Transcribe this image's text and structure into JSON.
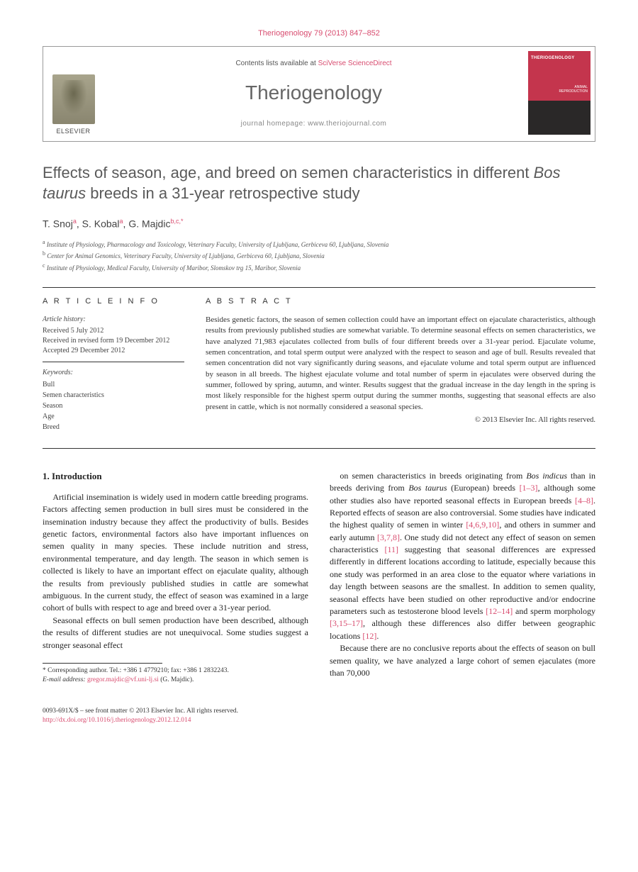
{
  "citation": "Theriogenology 79 (2013) 847–852",
  "header": {
    "contents_prefix": "Contents lists available at ",
    "contents_link": "SciVerse ScienceDirect",
    "journal_name": "Theriogenology",
    "homepage_label": "journal homepage: ",
    "homepage_url": "www.theriojournal.com",
    "publisher": "ELSEVIER",
    "cover_title": "THERIOGENOLOGY",
    "cover_label": "ANIMAL\nREPRODUCTION"
  },
  "title_part1": "Effects of season, age, and breed on semen characteristics in different ",
  "title_italic": "Bos taurus",
  "title_part2": " breeds in a 31-year retrospective study",
  "authors": [
    {
      "name": "T. Snoj",
      "sup": "a"
    },
    {
      "name": "S. Kobal",
      "sup": "a"
    },
    {
      "name": "G. Majdic",
      "sup": "b,c,",
      "corr": "*"
    }
  ],
  "affiliations": [
    {
      "sup": "a",
      "text": "Institute of Physiology, Pharmacology and Toxicology, Veterinary Faculty, University of Ljubljana, Gerbiceva 60, Ljubljana, Slovenia"
    },
    {
      "sup": "b",
      "text": "Center for Animal Genomics, Veterinary Faculty, University of Ljubljana, Gerbiceva 60, Ljubljana, Slovenia"
    },
    {
      "sup": "c",
      "text": "Institute of Physiology, Medical Faculty, University of Maribor, Slomskov trg 15, Maribor, Slovenia"
    }
  ],
  "info_heading": "A R T I C L E  I N F O",
  "history_heading": "Article history:",
  "history": [
    "Received 5 July 2012",
    "Received in revised form 19 December 2012",
    "Accepted 29 December 2012"
  ],
  "keywords_heading": "Keywords:",
  "keywords": [
    "Bull",
    "Semen characteristics",
    "Season",
    "Age",
    "Breed"
  ],
  "abstract_heading": "A B S T R A C T",
  "abstract": "Besides genetic factors, the season of semen collection could have an important effect on ejaculate characteristics, although results from previously published studies are somewhat variable. To determine seasonal effects on semen characteristics, we have analyzed 71,983 ejaculates collected from bulls of four different breeds over a 31-year period. Ejaculate volume, semen concentration, and total sperm output were analyzed with the respect to season and age of bull. Results revealed that semen concentration did not vary significantly during seasons, and ejaculate volume and total sperm output are influenced by season in all breeds. The highest ejaculate volume and total number of sperm in ejaculates were observed during the summer, followed by spring, autumn, and winter. Results suggest that the gradual increase in the day length in the spring is most likely responsible for the highest sperm output during the summer months, suggesting that seasonal effects are also present in cattle, which is not normally considered a seasonal species.",
  "copyright": "© 2013 Elsevier Inc. All rights reserved.",
  "intro_heading": "1. Introduction",
  "col1_paras": [
    "Artificial insemination is widely used in modern cattle breeding programs. Factors affecting semen production in bull sires must be considered in the insemination industry because they affect the productivity of bulls. Besides genetic factors, environmental factors also have important influences on semen quality in many species. These include nutrition and stress, environmental temperature, and day length. The season in which semen is collected is likely to have an important effect on ejaculate quality, although the results from previously published studies in cattle are somewhat ambiguous. In the current study, the effect of season was examined in a large cohort of bulls with respect to age and breed over a 31-year period.",
    "Seasonal effects on bull semen production have been described, although the results of different studies are not unequivocal. Some studies suggest a stronger seasonal effect"
  ],
  "col2_html": "on semen characteristics in breeds originating from <i>Bos indicus</i> than in breeds deriving from <i>Bos taurus</i> (European) breeds <span class=\"ref\">[1–3]</span>, although some other studies also have reported seasonal effects in European breeds <span class=\"ref\">[4–8]</span>. Reported effects of season are also controversial. Some studies have indicated the highest quality of semen in winter <span class=\"ref\">[4,6,9,10]</span>, and others in summer and early autumn <span class=\"ref\">[3,7,8]</span>. One study did not detect any effect of season on semen characteristics <span class=\"ref\">[11]</span> suggesting that seasonal differences are expressed differently in different locations according to latitude, especially because this one study was performed in an area close to the equator where variations in day length between seasons are the smallest. In addition to semen quality, seasonal effects have been studied on other reproductive and/or endocrine parameters such as testosterone blood levels <span class=\"ref\">[12–14]</span> and sperm morphology <span class=\"ref\">[3,15–17]</span>, although these differences also differ between geographic locations <span class=\"ref\">[12]</span>.",
  "col2_para2": "Because there are no conclusive reports about the effects of season on bull semen quality, we have analyzed a large cohort of semen ejaculates (more than 70,000",
  "footnote": {
    "corr": "* Corresponding author. Tel.: +386 1 4779210; fax: +386 1 2832243.",
    "email_label": "E-mail address: ",
    "email": "gregor.majdic@vf.uni-lj.si",
    "email_suffix": " (G. Majdic)."
  },
  "bottom": {
    "issn": "0093-691X/$ – see front matter © 2013 Elsevier Inc. All rights reserved.",
    "doi": "http://dx.doi.org/10.1016/j.theriogenology.2012.12.014"
  },
  "colors": {
    "accent": "#d84c6f",
    "cover_bg": "#c4354d",
    "text": "#333333",
    "heading": "#5a5a5a"
  }
}
